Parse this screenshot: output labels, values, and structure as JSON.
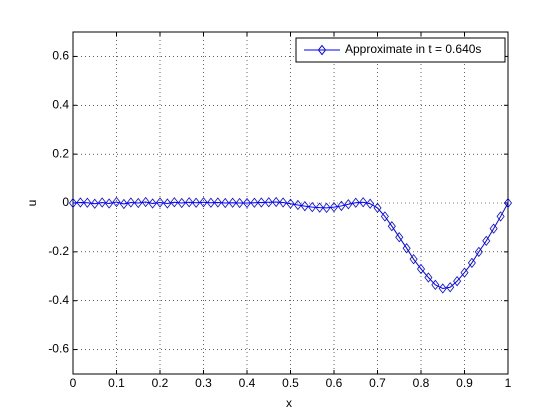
{
  "chart_data": {
    "type": "line",
    "xlabel": "x",
    "ylabel": "u",
    "x": [
      0,
      0.017,
      0.033,
      0.05,
      0.067,
      0.083,
      0.1,
      0.117,
      0.133,
      0.15,
      0.167,
      0.183,
      0.2,
      0.217,
      0.233,
      0.25,
      0.267,
      0.283,
      0.3,
      0.317,
      0.333,
      0.35,
      0.367,
      0.383,
      0.4,
      0.417,
      0.433,
      0.45,
      0.467,
      0.483,
      0.5,
      0.517,
      0.533,
      0.55,
      0.567,
      0.583,
      0.6,
      0.617,
      0.633,
      0.65,
      0.667,
      0.683,
      0.7,
      0.717,
      0.733,
      0.75,
      0.767,
      0.783,
      0.8,
      0.817,
      0.833,
      0.85,
      0.867,
      0.883,
      0.9,
      0.917,
      0.933,
      0.95,
      0.967,
      0.983,
      1
    ],
    "series": [
      {
        "name": "Approximate in t = 0.640s",
        "color": "#0000ff",
        "values": [
          0,
          0.002,
          0.001,
          -0.003,
          0.002,
          -0.002,
          0.004,
          -0.004,
          0.002,
          0,
          0.004,
          -0.002,
          0.002,
          -0.002,
          0.003,
          0,
          0.003,
          0.001,
          0.003,
          0.001,
          0.002,
          0,
          0.001,
          0,
          0,
          0.001,
          0.002,
          0.003,
          0.004,
          0.002,
          -0.003,
          -0.008,
          -0.013,
          -0.017,
          -0.019,
          -0.02,
          -0.017,
          -0.012,
          -0.005,
          0.001,
          0.003,
          -0.003,
          -0.02,
          -0.055,
          -0.095,
          -0.14,
          -0.185,
          -0.23,
          -0.27,
          -0.305,
          -0.335,
          -0.35,
          -0.345,
          -0.32,
          -0.285,
          -0.245,
          -0.2,
          -0.155,
          -0.105,
          -0.055,
          0
        ]
      }
    ],
    "xlim": [
      0,
      1
    ],
    "xticks": [
      0,
      0.1,
      0.2,
      0.3,
      0.4,
      0.5,
      0.6,
      0.7,
      0.8,
      0.9,
      1
    ],
    "ylim": [
      -0.7,
      0.7
    ],
    "yticks": [
      -0.6,
      -0.4,
      -0.2,
      0,
      0.2,
      0.4,
      0.6
    ],
    "grid": true,
    "legend": "northeast",
    "marker": "diamond"
  }
}
